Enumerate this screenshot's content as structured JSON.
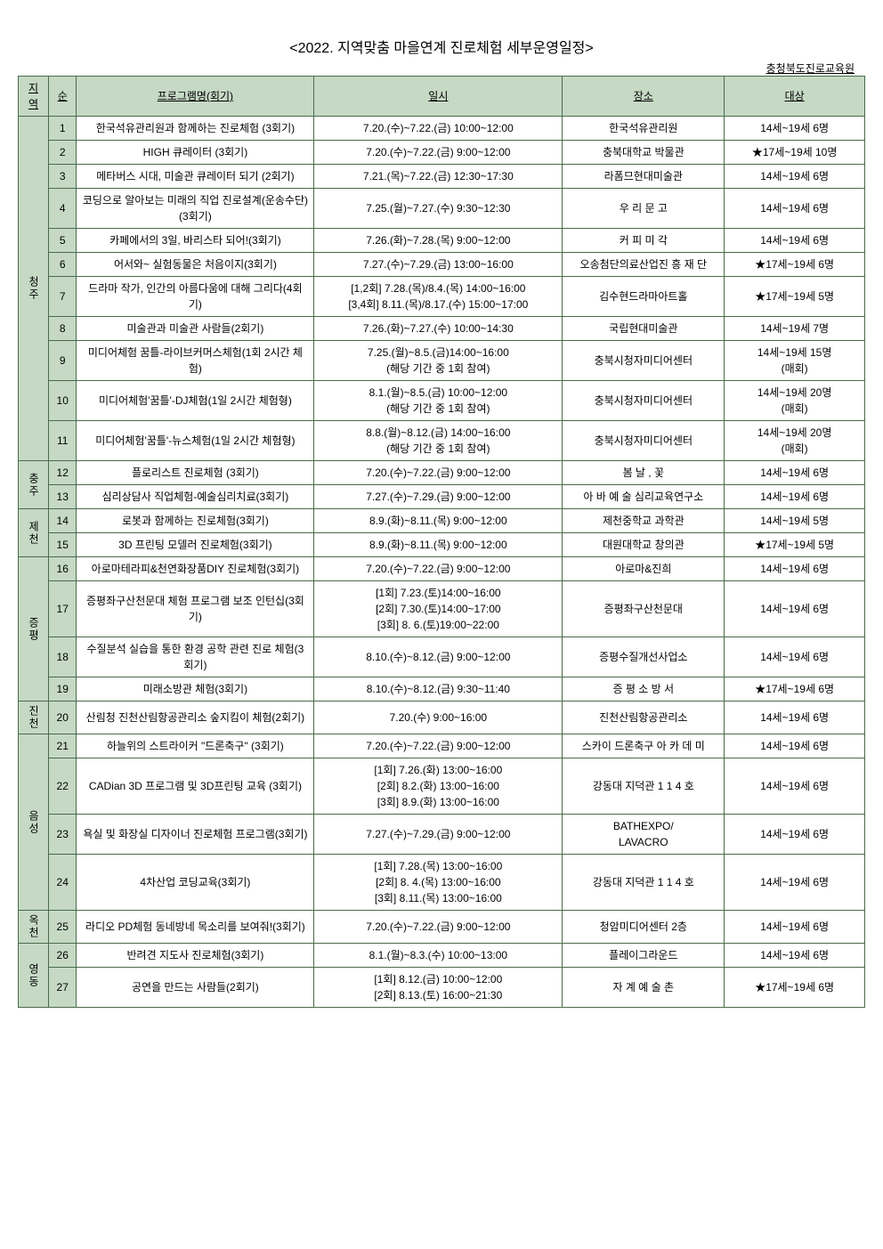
{
  "title": "<2022. 지역맞춤 마을연계 진로체험 세부운영일정>",
  "subtitle": "충청북도진로교육원",
  "headers": {
    "region": "지역",
    "num": "순",
    "prog": "프로그램명(회기)",
    "date": "일시",
    "place": "장소",
    "target": "대상"
  },
  "rows": [
    {
      "region": "청주",
      "regionSpan": 11,
      "num": "1",
      "prog": "한국석유관리원과 함께하는 진로체험 (3회기)",
      "date": "7.20.(수)~7.22.(금) 10:00~12:00",
      "place": "한국석유관리원",
      "target": "14세~19세 6명"
    },
    {
      "num": "2",
      "prog": "HIGH 큐레이터 (3회기)",
      "date": "7.20.(수)~7.22.(금) 9:00~12:00",
      "place": "충북대학교 박물관",
      "target": "★17세~19세 10명"
    },
    {
      "num": "3",
      "prog": "메타버스 시대, 미술관 큐레이터 되기 (2회기)",
      "date": "7.21.(목)~7.22.(금) 12:30~17:30",
      "place": "라폼므현대미술관",
      "target": "14세~19세 6명"
    },
    {
      "num": "4",
      "prog": "코딩으로 알아보는 미래의 직업 진로설계(운송수단)(3회기)",
      "date": "7.25.(월)~7.27.(수) 9:30~12:30",
      "place": "우 리 문 고",
      "target": "14세~19세 6명"
    },
    {
      "num": "5",
      "prog": "카페에서의 3일, 바리스타 되어!(3회기)",
      "date": "7.26.(화)~7.28.(목) 9:00~12:00",
      "place": "커 피 미 각",
      "target": "14세~19세 6명"
    },
    {
      "num": "6",
      "prog": "어서와~ 실험동물은 처음이지(3회기)",
      "date": "7.27.(수)~7.29.(금) 13:00~16:00",
      "place": "오송첨단의료산업진 흥 재 단",
      "target": "★17세~19세 6명"
    },
    {
      "num": "7",
      "prog": "드라마 작가, 인간의 아름다움에 대해 그리다(4회기)",
      "date": "[1,2회] 7.28.(목)/8.4.(목) 14:00~16:00\n[3,4회] 8.11.(목)/8.17.(수) 15:00~17:00",
      "place": "김수현드라마아트홀",
      "target": "★17세~19세 5명"
    },
    {
      "num": "8",
      "prog": "미술관과 미술관 사람들(2회기)",
      "date": "7.26.(화)~7.27.(수) 10:00~14:30",
      "place": "국립현대미술관",
      "target": "14세~19세 7명"
    },
    {
      "num": "9",
      "prog": "미디어체험 꿈틀-라이브커머스체험(1회 2시간 체험)",
      "date": "7.25.(월)~8.5.(금)14:00~16:00\n(해당 기간 중 1회 참여)",
      "place": "충북시청자미디어센터",
      "target": "14세~19세 15명\n(매회)"
    },
    {
      "num": "10",
      "prog": "미디어체험'꿈틀'-DJ체험(1일 2시간 체험형)",
      "date": "8.1.(월)~8.5.(금) 10:00~12:00\n(해당 기간 중 1회 참여)",
      "place": "충북시청자미디어센터",
      "target": "14세~19세 20명\n(매회)"
    },
    {
      "num": "11",
      "prog": "미디어체험'꿈틀'-뉴스체험(1일 2시간 체험형)",
      "date": "8.8.(월)~8.12.(금) 14:00~16:00\n(해당 기간 중 1회 참여)",
      "place": "충북시청자미디어센터",
      "target": "14세~19세 20명\n(매회)"
    },
    {
      "region": "충주",
      "regionSpan": 2,
      "num": "12",
      "prog": "플로리스트 진로체험 (3회기)",
      "date": "7.20.(수)~7.22.(금) 9:00~12:00",
      "place": "봄 날 , 꽃",
      "target": "14세~19세 6명"
    },
    {
      "num": "13",
      "prog": "심리상담사 직업체험-예술심리치료(3회기)",
      "date": "7.27.(수)~7.29.(금) 9:00~12:00",
      "place": "아 바 예 술 심리교육연구소",
      "target": "14세~19세 6명"
    },
    {
      "region": "제천",
      "regionSpan": 2,
      "num": "14",
      "prog": "로봇과 함께하는 진로체험(3회기)",
      "date": "8.9.(화)~8.11.(목) 9:00~12:00",
      "place": "제천중학교 과학관",
      "target": "14세~19세 5명"
    },
    {
      "num": "15",
      "prog": "3D 프린팅 모델러 진로체험(3회기)",
      "date": "8.9.(화)~8.11.(목) 9:00~12:00",
      "place": "대원대학교 창의관",
      "target": "★17세~19세 5명"
    },
    {
      "region": "증평",
      "regionSpan": 4,
      "num": "16",
      "prog": "아로마테라피&천연화장품DIY 진로체험(3회기)",
      "date": "7.20.(수)~7.22.(금) 9:00~12:00",
      "place": "아로마&진희",
      "target": "14세~19세 6명"
    },
    {
      "num": "17",
      "prog": "증평좌구산천문대 체험 프로그램 보조 인턴십(3회기)",
      "date": "[1회] 7.23.(토)14:00~16:00\n[2회] 7.30.(토)14:00~17:00\n[3회] 8. 6.(토)19:00~22:00",
      "place": "증평좌구산천문대",
      "target": "14세~19세 6명"
    },
    {
      "num": "18",
      "prog": "수질분석 실습을 통한 환경 공학 관련 진로 체험(3회기)",
      "date": "8.10.(수)~8.12.(금) 9:00~12:00",
      "place": "증평수질개선사업소",
      "target": "14세~19세 6명"
    },
    {
      "num": "19",
      "prog": "미래소방관 체험(3회기)",
      "date": "8.10.(수)~8.12.(금) 9:30~11:40",
      "place": "증 평 소 방 서",
      "target": "★17세~19세 6명"
    },
    {
      "region": "진천",
      "regionSpan": 1,
      "num": "20",
      "prog": "산림청 진천산림항공관리소 숲지킴이 체험(2회기)",
      "date": "7.20.(수) 9:00~16:00",
      "place": "진천산림항공관리소",
      "target": "14세~19세 6명"
    },
    {
      "region": "음성",
      "regionSpan": 4,
      "num": "21",
      "prog": "하늘위의 스트라이커 \"드론축구\" (3회기)",
      "date": "7.20.(수)~7.22.(금) 9:00~12:00",
      "place": "스카이 드론축구 아 카 데 미",
      "target": "14세~19세 6명"
    },
    {
      "num": "22",
      "prog": "CADian 3D 프로그램 및 3D프린팅 교육 (3회기)",
      "date": "[1회] 7.26.(화) 13:00~16:00\n[2회] 8.2.(화) 13:00~16:00\n[3회] 8.9.(화) 13:00~16:00",
      "place": "강동대 지덕관 1 1 4 호",
      "target": "14세~19세 6명"
    },
    {
      "num": "23",
      "prog": "욕실 및 화장실 디자이너 진로체험 프로그램(3회기)",
      "date": "7.27.(수)~7.29.(금) 9:00~12:00",
      "place": "BATHEXPO/\nLAVACRO",
      "target": "14세~19세 6명"
    },
    {
      "num": "24",
      "prog": "4차산업 코딩교육(3회기)",
      "date": "[1회] 7.28.(목) 13:00~16:00\n[2회] 8. 4.(목) 13:00~16:00\n[3회] 8.11.(목) 13:00~16:00",
      "place": "강동대 지덕관 1 1 4 호",
      "target": "14세~19세 6명"
    },
    {
      "region": "옥천",
      "regionSpan": 1,
      "num": "25",
      "prog": "라디오 PD체험 동네방네 목소리를 보여줘!(3회기)",
      "date": "7.20.(수)~7.22.(금) 9:00~12:00",
      "place": "청암미디어센터 2층",
      "target": "14세~19세 6명"
    },
    {
      "region": "영동",
      "regionSpan": 2,
      "num": "26",
      "prog": "반려견 지도사 진로체험(3회기)",
      "date": "8.1.(월)~8.3.(수) 10:00~13:00",
      "place": "플레이그라운드",
      "target": "14세~19세 6명"
    },
    {
      "num": "27",
      "prog": "공연을 만드는 사람들(2회기)",
      "date": "[1회] 8.12.(금) 10:00~12:00\n[2회] 8.13.(토) 16:00~21:30",
      "place": "자 계 예 술 촌",
      "target": "★17세~19세 6명"
    }
  ]
}
